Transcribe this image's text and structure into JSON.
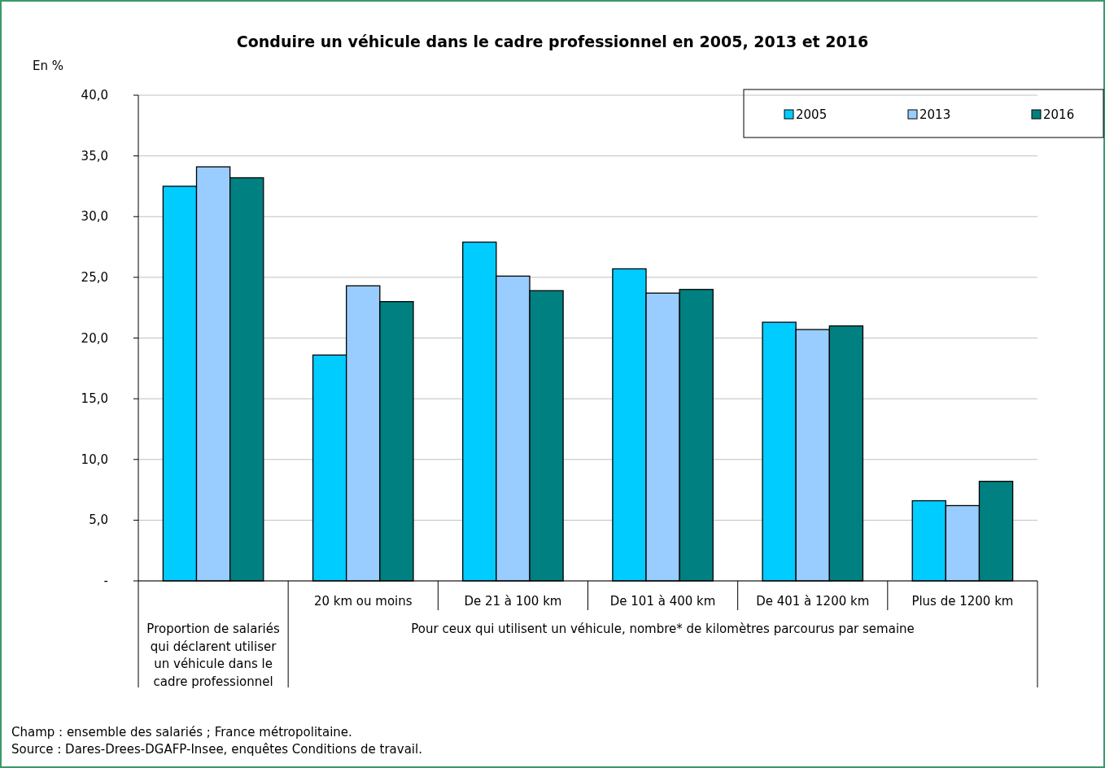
{
  "chart_data": {
    "type": "bar",
    "title": "Conduire un véhicule dans le cadre professionnel en 2005, 2013 et 2016",
    "ylabel": "En %",
    "categories": [
      null,
      "20 km ou moins",
      "De 21 à 100 km",
      "De 101 à 400 km",
      "De 401 à 1200 km",
      "Plus de 1200 km"
    ],
    "series": [
      {
        "name": "2005",
        "color": "#00ccff",
        "values": [
          32.5,
          18.6,
          27.9,
          25.7,
          21.3,
          6.6
        ]
      },
      {
        "name": "2013",
        "color": "#99ccff",
        "values": [
          34.1,
          24.3,
          25.1,
          23.7,
          20.7,
          6.2
        ]
      },
      {
        "name": "2016",
        "color": "#008080",
        "values": [
          33.2,
          23.0,
          23.9,
          24.0,
          21.0,
          8.2
        ]
      }
    ],
    "ylim": [
      0,
      40
    ],
    "yticks": [
      {
        "value": 0,
        "label": "-"
      },
      {
        "value": 5,
        "label": "5,0"
      },
      {
        "value": 10,
        "label": "10,0"
      },
      {
        "value": 15,
        "label": "15,0"
      },
      {
        "value": 20,
        "label": "20,0"
      },
      {
        "value": 25,
        "label": "25,0"
      },
      {
        "value": 30,
        "label": "30,0"
      },
      {
        "value": 35,
        "label": "35,0"
      },
      {
        "value": 40,
        "label": "40,0"
      }
    ],
    "grid": "y",
    "legend": "top right",
    "annotations": [
      "Proportion de salariés qui déclarent utiliser un véhicule dans le cadre professionnel",
      "Pour ceux qui utilisent un véhicule, nombre* de kilomètres parcourus par semaine",
      "Champ : ensemble des salariés ; France métropolitaine.",
      "Source : Dares-Drees-DGAFP-Insee, enquêtes Conditions de travail."
    ]
  }
}
